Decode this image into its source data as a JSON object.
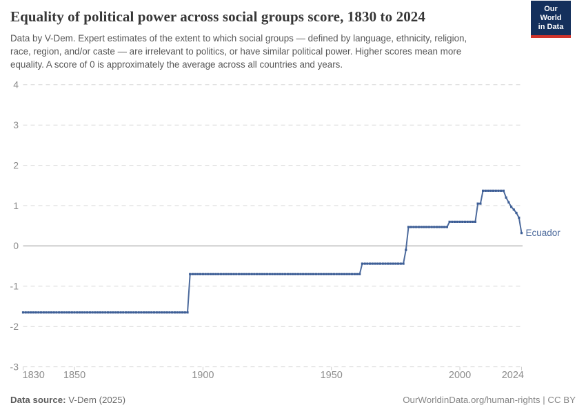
{
  "header": {
    "title": "Equality of political power across social groups score, 1830 to 2024",
    "subtitle_lines": [
      "Data by V-Dem. Expert estimates of the extent to which social groups — defined by language, ethnicity, religion,",
      "race, region, and/or caste — are irrelevant to politics, or have similar political power. Higher scores mean more",
      "equality. A score of 0 is approximately the average across all countries and years."
    ],
    "logo": {
      "line1": "Our World",
      "line2": "in Data"
    }
  },
  "chart_data": {
    "type": "line",
    "title": "Equality of political power across social groups score, 1830 to 2024",
    "entity": "Ecuador",
    "xlabel": "",
    "ylabel": "",
    "xlim": [
      1830,
      2024
    ],
    "ylim": [
      -3,
      4
    ],
    "yticks": [
      4,
      3,
      2,
      1,
      0,
      -1,
      -2,
      -3
    ],
    "xticks": [
      1830,
      1850,
      1900,
      1950,
      2000,
      2024
    ],
    "grid": "horizontal dashed, solid line at 0",
    "legend_position": "end-of-line label",
    "line_color": "#4C6A9C",
    "marker_color": "#3d5e96",
    "series_steps": [
      {
        "from": 1830,
        "to": 1894,
        "value": -1.65
      },
      {
        "from": 1895,
        "to": 1961,
        "value": -0.7
      },
      {
        "from": 1962,
        "to": 1978,
        "value": -0.44
      },
      {
        "from": 1979,
        "to": 1979,
        "value": -0.1
      },
      {
        "from": 1980,
        "to": 1995,
        "value": 0.47
      },
      {
        "from": 1996,
        "to": 2006,
        "value": 0.6
      },
      {
        "from": 2007,
        "to": 2008,
        "value": 1.05
      },
      {
        "from": 2009,
        "to": 2017,
        "value": 1.37
      },
      {
        "from": 2018,
        "to": 2018,
        "value": 1.2
      },
      {
        "from": 2019,
        "to": 2019,
        "value": 1.08
      },
      {
        "from": 2020,
        "to": 2020,
        "value": 0.97
      },
      {
        "from": 2021,
        "to": 2021,
        "value": 0.9
      },
      {
        "from": 2022,
        "to": 2022,
        "value": 0.82
      },
      {
        "from": 2023,
        "to": 2023,
        "value": 0.7
      },
      {
        "from": 2024,
        "to": 2024,
        "value": 0.32
      }
    ]
  },
  "footer": {
    "source_label": "Data source:",
    "source_value": " V-Dem (2025)",
    "credit": "OurWorldinData.org/human-rights | CC BY"
  },
  "colors": {
    "grid": "#d7d7d7",
    "zero_line": "#8f8f8f",
    "axis_text": "#8c8c8c",
    "logo_navy": "#14305c",
    "logo_red": "#d0342c"
  }
}
